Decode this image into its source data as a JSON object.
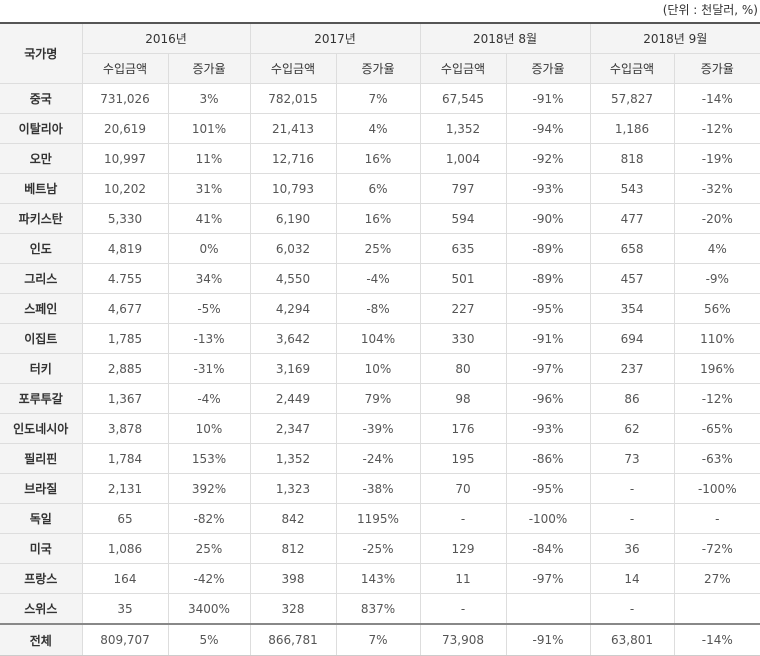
{
  "unit_label": "(단위 : 천달러, %)",
  "header": {
    "country": "국가명",
    "periods": [
      "2016년",
      "2017년",
      "2018년 8월",
      "2018년 9월"
    ],
    "amount": "수입금액",
    "growth": "증가율"
  },
  "rows": [
    {
      "country": "중국",
      "v": [
        "731,026",
        "3%",
        "782,015",
        "7%",
        "67,545",
        "-91%",
        "57,827",
        "-14%"
      ]
    },
    {
      "country": "이탈리아",
      "v": [
        "20,619",
        "101%",
        "21,413",
        "4%",
        "1,352",
        "-94%",
        "1,186",
        "-12%"
      ]
    },
    {
      "country": "오만",
      "v": [
        "10,997",
        "11%",
        "12,716",
        "16%",
        "1,004",
        "-92%",
        "818",
        "-19%"
      ]
    },
    {
      "country": "베트남",
      "v": [
        "10,202",
        "31%",
        "10,793",
        "6%",
        "797",
        "-93%",
        "543",
        "-32%"
      ]
    },
    {
      "country": "파키스탄",
      "v": [
        "5,330",
        "41%",
        "6,190",
        "16%",
        "594",
        "-90%",
        "477",
        "-20%"
      ]
    },
    {
      "country": "인도",
      "v": [
        "4,819",
        "0%",
        "6,032",
        "25%",
        "635",
        "-89%",
        "658",
        "4%"
      ]
    },
    {
      "country": "그리스",
      "v": [
        "4.755",
        "34%",
        "4,550",
        "-4%",
        "501",
        "-89%",
        "457",
        "-9%"
      ]
    },
    {
      "country": "스페인",
      "v": [
        "4,677",
        "-5%",
        "4,294",
        "-8%",
        "227",
        "-95%",
        "354",
        "56%"
      ]
    },
    {
      "country": "이집트",
      "v": [
        "1,785",
        "-13%",
        "3,642",
        "104%",
        "330",
        "-91%",
        "694",
        "110%"
      ]
    },
    {
      "country": "터키",
      "v": [
        "2,885",
        "-31%",
        "3,169",
        "10%",
        "80",
        "-97%",
        "237",
        "196%"
      ]
    },
    {
      "country": "포루투갈",
      "v": [
        "1,367",
        "-4%",
        "2,449",
        "79%",
        "98",
        "-96%",
        "86",
        "-12%"
      ]
    },
    {
      "country": "인도네시아",
      "v": [
        "3,878",
        "10%",
        "2,347",
        "-39%",
        "176",
        "-93%",
        "62",
        "-65%"
      ]
    },
    {
      "country": "필리핀",
      "v": [
        "1,784",
        "153%",
        "1,352",
        "-24%",
        "195",
        "-86%",
        "73",
        "-63%"
      ]
    },
    {
      "country": "브라질",
      "v": [
        "2,131",
        "392%",
        "1,323",
        "-38%",
        "70",
        "-95%",
        "-",
        "-100%"
      ]
    },
    {
      "country": "독일",
      "v": [
        "65",
        "-82%",
        "842",
        "1195%",
        "-",
        "-100%",
        "-",
        "-"
      ]
    },
    {
      "country": "미국",
      "v": [
        "1,086",
        "25%",
        "812",
        "-25%",
        "129",
        "-84%",
        "36",
        "-72%"
      ]
    },
    {
      "country": "프랑스",
      "v": [
        "164",
        "-42%",
        "398",
        "143%",
        "11",
        "-97%",
        "14",
        "27%"
      ]
    },
    {
      "country": "스위스",
      "v": [
        "35",
        "3400%",
        "328",
        "837%",
        "-",
        "",
        "-",
        ""
      ]
    }
  ],
  "total": {
    "country": "전체",
    "v": [
      "809,707",
      "5%",
      "866,781",
      "7%",
      "73,908",
      "-91%",
      "63,801",
      "-14%"
    ]
  }
}
